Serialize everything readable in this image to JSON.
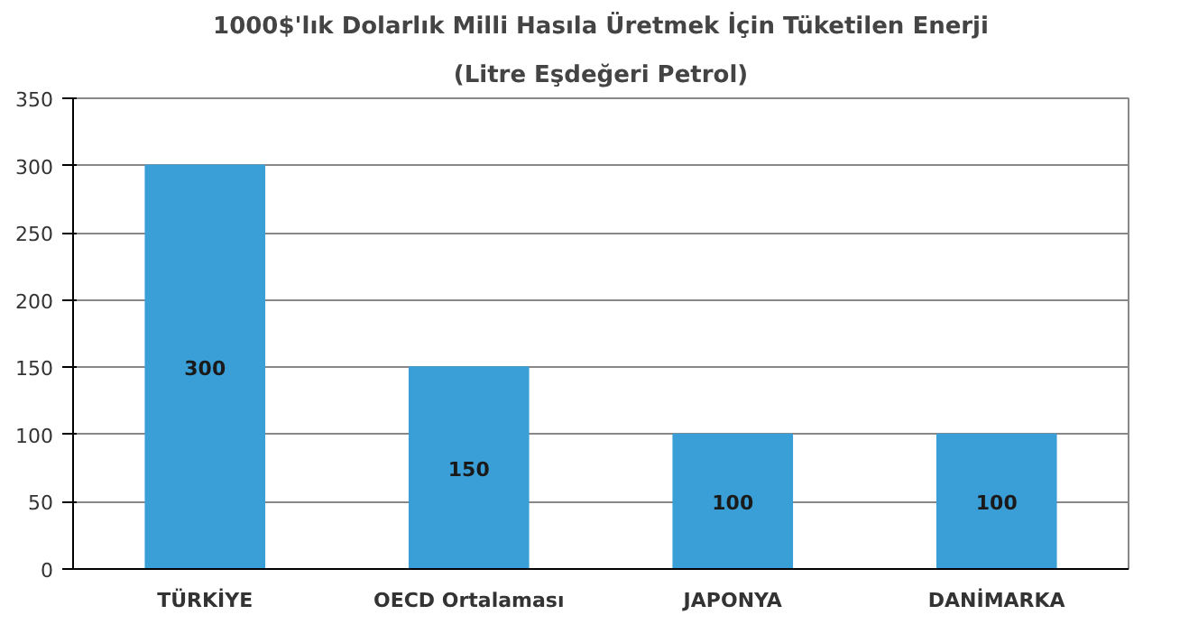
{
  "chart_data": {
    "type": "bar",
    "title": "1000$'lık Dolarlık Milli Hasıla Üretmek İçin Tüketilen Enerji",
    "subtitle": "(Litre Eşdeğeri Petrol)",
    "categories": [
      "TÜRKİYE",
      "OECD Ortalaması",
      "JAPONYA",
      "DANİMARKA"
    ],
    "values": [
      300,
      150,
      100,
      100
    ],
    "color": "#3a9fd6",
    "ylim": [
      0,
      350
    ],
    "yticks": [
      0,
      50,
      100,
      150,
      200,
      250,
      300,
      350
    ],
    "grid": "y",
    "data_labels": true
  }
}
